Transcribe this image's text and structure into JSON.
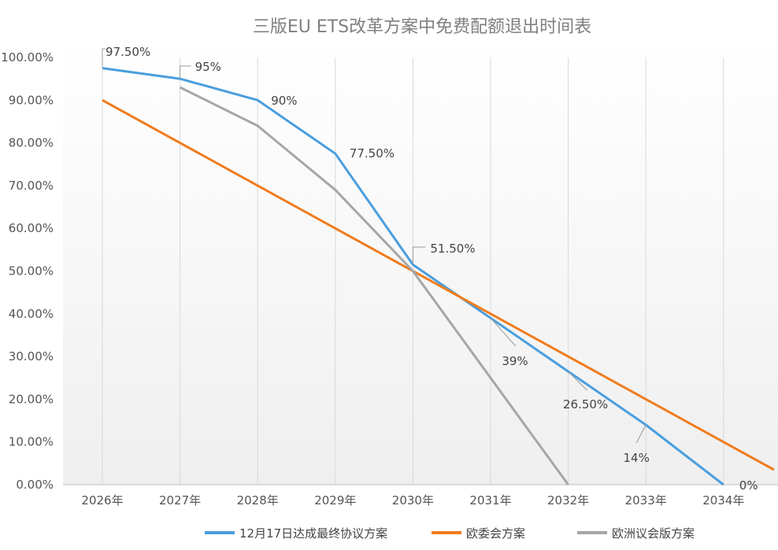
{
  "chart_data": {
    "type": "line",
    "title": "三版EU ETS改革方案中免费配额退出时间表",
    "categories": [
      "2026年",
      "2027年",
      "2028年",
      "2029年",
      "2030年",
      "2031年",
      "2032年",
      "2033年",
      "2034年"
    ],
    "ylim": [
      0,
      100
    ],
    "y_ticks": [
      "0.00%",
      "10.00%",
      "20.00%",
      "30.00%",
      "40.00%",
      "50.00%",
      "60.00%",
      "70.00%",
      "80.00%",
      "90.00%",
      "100.00%"
    ],
    "grid": "vertical",
    "legend_position": "bottom",
    "series": [
      {
        "name": "12月17日达成最终协议方案",
        "color": "#4a9ede",
        "x": [
          0,
          1,
          2,
          3,
          4,
          5,
          6,
          7,
          8
        ],
        "values": [
          97.5,
          95,
          90,
          77.5,
          51.5,
          39,
          26.5,
          14,
          0
        ],
        "labels": [
          "97.50%",
          "95%",
          "90%",
          "77.50%",
          "51.50%",
          "39%",
          "26.50%",
          "14%",
          "0%"
        ]
      },
      {
        "name": "欧委会方案",
        "color": "#f07c1e",
        "x": [
          0,
          8.65
        ],
        "values": [
          90,
          3.5
        ],
        "labels": []
      },
      {
        "name": "欧洲议会版方案",
        "color": "#a6a6a6",
        "x": [
          1,
          2,
          3,
          4,
          5,
          6
        ],
        "values": [
          93,
          84,
          69,
          50,
          25,
          0
        ],
        "labels": []
      }
    ]
  }
}
